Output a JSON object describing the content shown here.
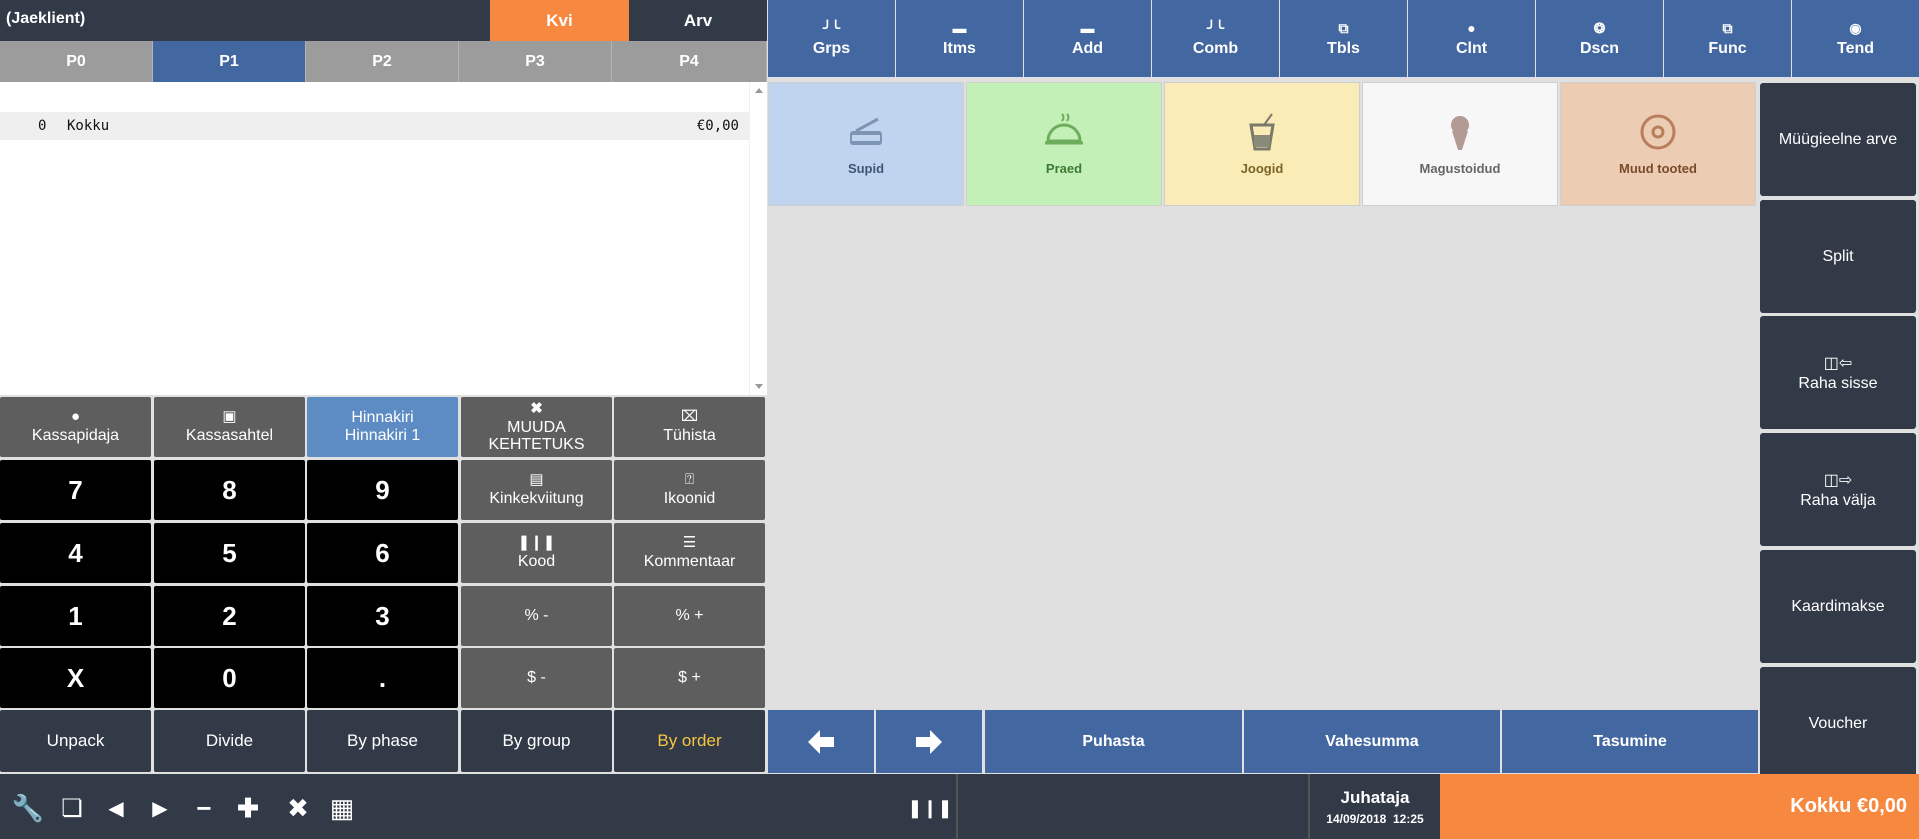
{
  "header": {
    "customer": "(Jaeklient)",
    "tab_kvi": "Kvi",
    "tab_arv": "Arv",
    "price_tabs": [
      "P0",
      "P1",
      "P2",
      "P3",
      "P4"
    ]
  },
  "order": {
    "row": {
      "qty": "0",
      "name": "Kokku",
      "amount": "€0,00"
    }
  },
  "keypad": {
    "kassapidaja": "Kassapidaja",
    "kassasahtel": "Kassasahtel",
    "hinnakiri_line1": "Hinnakiri",
    "hinnakiri_line2": "Hinnakiri 1",
    "muuda_line1": "MUUDA",
    "muuda_line2": "KEHTETUKS",
    "tuhista": "Tühista",
    "kinkekviitung": "Kinkekviitung",
    "ikoonid": "Ikoonid",
    "kood": "Kood",
    "kommentaar": "Kommentaar",
    "pct_minus": "% -",
    "pct_plus": "% +",
    "usd_minus": "$ -",
    "usd_plus": "$ +",
    "n7": "7",
    "n8": "8",
    "n9": "9",
    "n4": "4",
    "n5": "5",
    "n6": "6",
    "n1": "1",
    "n2": "2",
    "n3": "3",
    "nx": "X",
    "n0": "0",
    "ndot": "."
  },
  "footer_buttons": {
    "unpack": "Unpack",
    "divide": "Divide",
    "by_phase": "By phase",
    "by_group": "By group",
    "by_order": "By order"
  },
  "top_menu": {
    "grps": "Grps",
    "itms": "Itms",
    "add": "Add",
    "comb": "Comb",
    "tbls": "Tbls",
    "clnt": "Clnt",
    "dscn": "Dscn",
    "func": "Func",
    "tend": "Tend"
  },
  "groups": [
    {
      "label": "Supid",
      "color": "#c0d4ef"
    },
    {
      "label": "Praed",
      "color": "#c2f0b6"
    },
    {
      "label": "Joogid",
      "color": "#f9ecb6"
    },
    {
      "label": "Magustoidud",
      "color": "#f7f7f7"
    },
    {
      "label": "Muud tooted",
      "color": "#ecccb2"
    }
  ],
  "right_actions": {
    "myygieelne": "Müügieelne arve",
    "split": "Split",
    "raha_sisse": "Raha sisse",
    "raha_valja": "Raha välja",
    "kaardimakse": "Kaardimakse",
    "voucher": "Voucher"
  },
  "bottom_nav": {
    "puhasta": "Puhasta",
    "vahesumma": "Vahesumma",
    "tasumine": "Tasumine"
  },
  "status": {
    "user": "Juhataja",
    "datetime": "14/09/2018  12:25",
    "total": "Kokku €0,00"
  },
  "colors": {
    "accent_orange": "#f7883f",
    "accent_blue": "#4367a1",
    "dark": "#323a48",
    "by_order_text": "#f5c542"
  }
}
